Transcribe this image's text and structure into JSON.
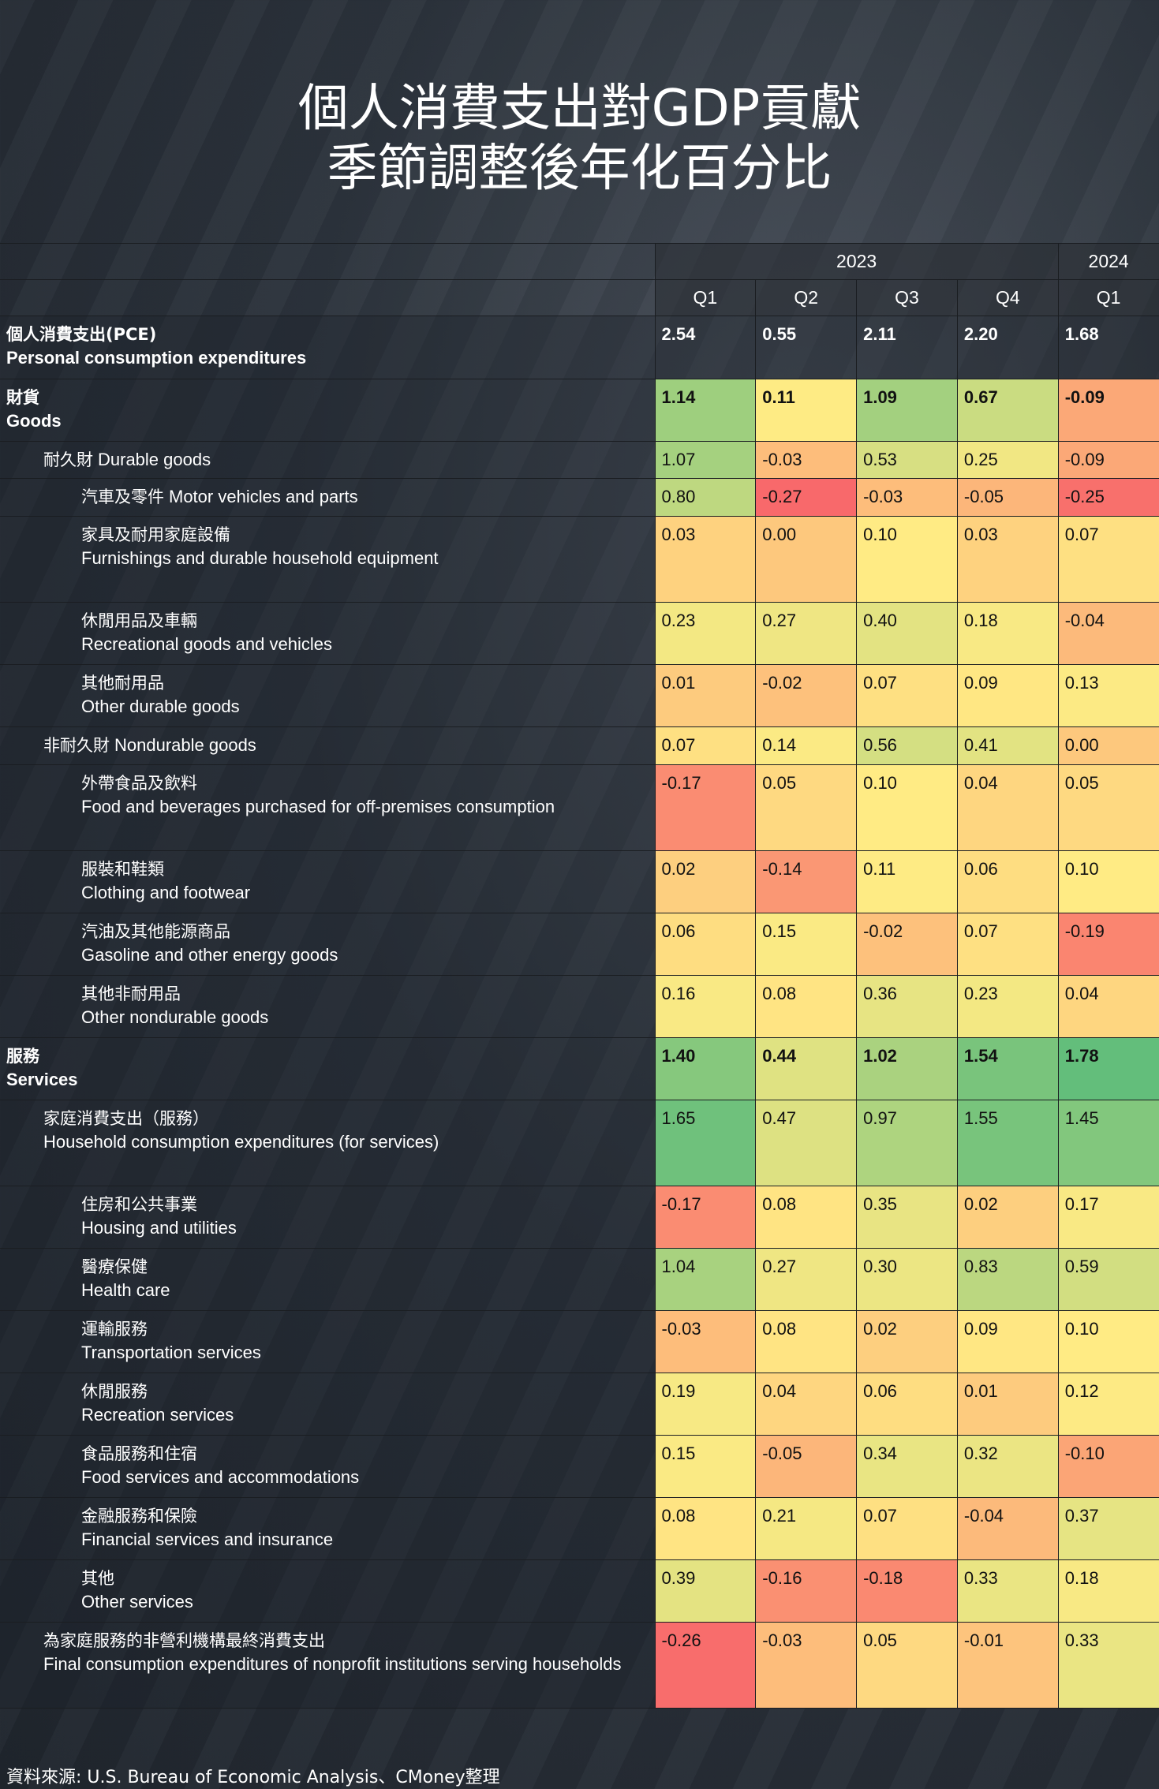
{
  "title_line1": "個人消費支出對GDP貢獻",
  "title_line2": "季節調整後年化百分比",
  "source": "資料來源: U.S. Bureau of Economic Analysis、CMoney整理",
  "colors": {
    "low": "#F8696B",
    "mid": "#FFEB84",
    "high": "#63BE7B",
    "scale_min": -0.27,
    "scale_mid": 0.1,
    "scale_max": 1.78
  },
  "chart_data": {
    "type": "table",
    "title": "個人消費支出對GDP貢獻 季節調整後年化百分比",
    "years": [
      {
        "label": "2023",
        "span": 4
      },
      {
        "label": "2024",
        "span": 1
      }
    ],
    "quarters": [
      "Q1",
      "Q2",
      "Q3",
      "Q4",
      "Q1"
    ],
    "rows": [
      {
        "zh": "個人消費支出(PCE)",
        "en": "Personal consumption expenditures",
        "level": 0,
        "bold": true,
        "colored": false,
        "values": [
          "2.54",
          "0.55",
          "2.11",
          "2.20",
          "1.68"
        ]
      },
      {
        "zh": "財貨",
        "en": "Goods",
        "level": 0,
        "bold": true,
        "colored": true,
        "values": [
          "1.14",
          "0.11",
          "1.09",
          "0.67",
          "-0.09"
        ]
      },
      {
        "zh": "耐久財",
        "en": "Durable goods",
        "level": 1,
        "inline": true,
        "values": [
          "1.07",
          "-0.03",
          "0.53",
          "0.25",
          "-0.09"
        ]
      },
      {
        "zh": "汽車及零件",
        "en": "Motor vehicles and parts",
        "level": 2,
        "inline": true,
        "values": [
          "0.80",
          "-0.27",
          "-0.03",
          "-0.05",
          "-0.25"
        ]
      },
      {
        "zh": "家具及耐用家庭設備",
        "en": "Furnishings and durable household equipment",
        "level": 2,
        "tall": true,
        "values": [
          "0.03",
          "0.00",
          "0.10",
          "0.03",
          "0.07"
        ]
      },
      {
        "zh": "休閒用品及車輛",
        "en": "Recreational goods and vehicles",
        "level": 2,
        "values": [
          "0.23",
          "0.27",
          "0.40",
          "0.18",
          "-0.04"
        ]
      },
      {
        "zh": "其他耐用品",
        "en": "Other durable goods",
        "level": 2,
        "values": [
          "0.01",
          "-0.02",
          "0.07",
          "0.09",
          "0.13"
        ]
      },
      {
        "zh": "非耐久財",
        "en": "Nondurable goods",
        "level": 1,
        "inline": true,
        "values": [
          "0.07",
          "0.14",
          "0.56",
          "0.41",
          "0.00"
        ]
      },
      {
        "zh": "外帶食品及飲料",
        "en": "Food and beverages purchased for off-premises consumption",
        "level": 2,
        "tall": true,
        "values": [
          "-0.17",
          "0.05",
          "0.10",
          "0.04",
          "0.05"
        ]
      },
      {
        "zh": "服裝和鞋類",
        "en": "Clothing and footwear",
        "level": 2,
        "values": [
          "0.02",
          "-0.14",
          "0.11",
          "0.06",
          "0.10"
        ]
      },
      {
        "zh": "汽油及其他能源商品",
        "en": "Gasoline and other energy goods",
        "level": 2,
        "values": [
          "0.06",
          "0.15",
          "-0.02",
          "0.07",
          "-0.19"
        ]
      },
      {
        "zh": "其他非耐用品",
        "en": "Other nondurable goods",
        "level": 2,
        "values": [
          "0.16",
          "0.08",
          "0.36",
          "0.23",
          "0.04"
        ]
      },
      {
        "zh": "服務",
        "en": "Services",
        "level": 0,
        "bold": true,
        "colored": true,
        "values": [
          "1.40",
          "0.44",
          "1.02",
          "1.54",
          "1.78"
        ]
      },
      {
        "zh": "家庭消費支出（服務）",
        "en": "Household consumption expenditures (for services)",
        "level": 1,
        "tall": true,
        "values": [
          "1.65",
          "0.47",
          "0.97",
          "1.55",
          "1.45"
        ]
      },
      {
        "zh": "住房和公共事業",
        "en": "Housing and utilities",
        "level": 2,
        "values": [
          "-0.17",
          "0.08",
          "0.35",
          "0.02",
          "0.17"
        ]
      },
      {
        "zh": "醫療保健",
        "en": "Health care",
        "level": 2,
        "values": [
          "1.04",
          "0.27",
          "0.30",
          "0.83",
          "0.59"
        ]
      },
      {
        "zh": "運輸服務",
        "en": "Transportation services",
        "level": 2,
        "values": [
          "-0.03",
          "0.08",
          "0.02",
          "0.09",
          "0.10"
        ]
      },
      {
        "zh": "休閒服務",
        "en": "Recreation services",
        "level": 2,
        "values": [
          "0.19",
          "0.04",
          "0.06",
          "0.01",
          "0.12"
        ]
      },
      {
        "zh": "食品服務和住宿",
        "en": "Food services and accommodations",
        "level": 2,
        "values": [
          "0.15",
          "-0.05",
          "0.34",
          "0.32",
          "-0.10"
        ]
      },
      {
        "zh": "金融服務和保險",
        "en": "Financial services and insurance",
        "level": 2,
        "values": [
          "0.08",
          "0.21",
          "0.07",
          "-0.04",
          "0.37"
        ]
      },
      {
        "zh": "其他",
        "en": "Other services",
        "level": 2,
        "values": [
          "0.39",
          "-0.16",
          "-0.18",
          "0.33",
          "0.18"
        ]
      },
      {
        "zh": "為家庭服務的非營利機構最終消費支出",
        "en": "Final consumption expenditures of nonprofit institutions serving households",
        "level": 1,
        "tall": true,
        "values": [
          "-0.26",
          "-0.03",
          "0.05",
          "-0.01",
          "0.33"
        ]
      }
    ]
  }
}
